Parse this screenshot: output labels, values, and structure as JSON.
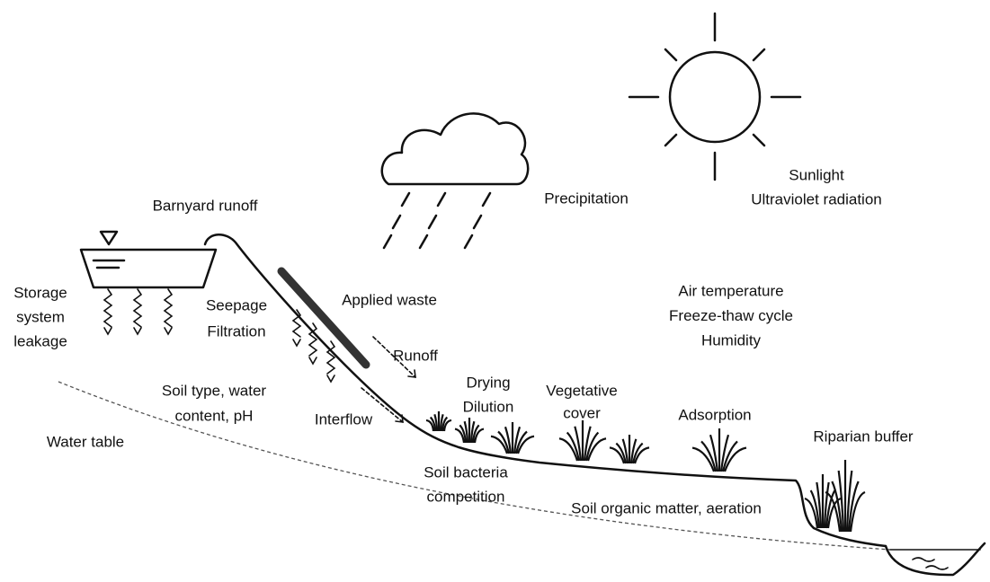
{
  "labels": [
    {
      "lines": [
        "Barnyard runoff"
      ]
    },
    {
      "lines": [
        "Storage",
        "system",
        "leakage"
      ]
    },
    {
      "lines": [
        "Seepage",
        "Filtration"
      ]
    },
    {
      "lines": [
        "Applied waste"
      ]
    },
    {
      "lines": [
        "Runoff"
      ]
    },
    {
      "lines": [
        "Drying",
        "Dilution"
      ]
    },
    {
      "lines": [
        "Vegetative",
        "cover"
      ]
    },
    {
      "lines": [
        "Adsorption"
      ]
    },
    {
      "lines": [
        "Riparian buffer"
      ]
    },
    {
      "lines": [
        "Soil type, water",
        "content, pH"
      ]
    },
    {
      "lines": [
        "Interflow"
      ]
    },
    {
      "lines": [
        "Water table"
      ]
    },
    {
      "lines": [
        "Soil bacteria",
        "competition"
      ]
    },
    {
      "lines": [
        "Soil organic matter, aeration"
      ]
    },
    {
      "lines": [
        "Precipitation"
      ]
    },
    {
      "lines": [
        "Sunlight",
        "Ultraviolet radiation"
      ]
    },
    {
      "lines": [
        "Air temperature",
        "Freeze-thaw cycle",
        "Humidity"
      ]
    }
  ]
}
